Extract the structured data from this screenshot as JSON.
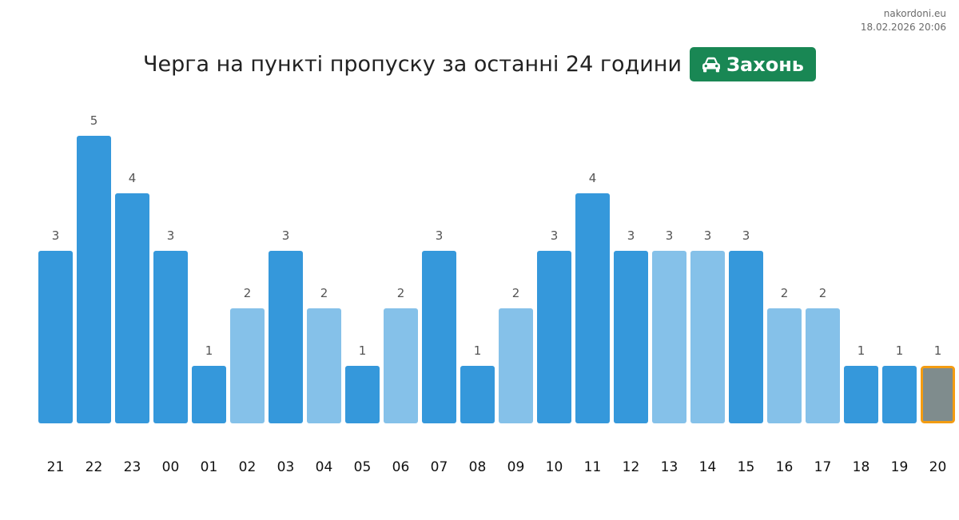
{
  "site": {
    "domain": "nakordoni.eu",
    "timestamp": "18.02.2026 20:06"
  },
  "title": "Черга на пункті пропуску за останні 24 години",
  "badge": {
    "label": "Захонь",
    "icon": "car-icon",
    "color": "#198754"
  },
  "colors": {
    "bar_dark": "#3598db",
    "bar_light": "#85c1e9",
    "bar_current": "#7f8c8d",
    "current_border": "#f39c12"
  },
  "chart_data": {
    "type": "bar",
    "title": "Черга на пункті пропуску за останні 24 години",
    "categories": [
      "21",
      "22",
      "23",
      "00",
      "01",
      "02",
      "03",
      "04",
      "05",
      "06",
      "07",
      "08",
      "09",
      "10",
      "11",
      "12",
      "13",
      "14",
      "15",
      "16",
      "17",
      "18",
      "19",
      "20"
    ],
    "values": [
      3,
      5,
      4,
      3,
      1,
      2,
      3,
      2,
      1,
      2,
      3,
      1,
      2,
      3,
      4,
      3,
      3,
      3,
      3,
      2,
      2,
      1,
      1,
      1
    ],
    "bar_shade": [
      "dark",
      "dark",
      "dark",
      "dark",
      "dark",
      "light",
      "dark",
      "light",
      "dark",
      "light",
      "dark",
      "dark",
      "light",
      "dark",
      "dark",
      "dark",
      "light",
      "light",
      "dark",
      "light",
      "light",
      "dark",
      "dark",
      "current"
    ],
    "ylim": [
      0,
      5
    ],
    "grid": false,
    "data_labels": true,
    "xlabel": "",
    "ylabel": ""
  }
}
